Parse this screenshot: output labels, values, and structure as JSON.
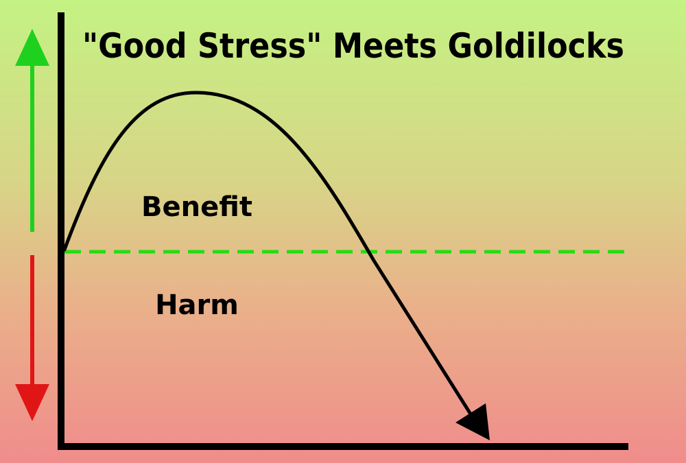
{
  "title": "\"Good Stress\" Meets Goldilocks",
  "labels": {
    "upper_region": "Benefit",
    "lower_region": "Harm"
  },
  "colors": {
    "background_top": "#c4f283",
    "background_bottom": "#f08c8b",
    "threshold_line": "#22dd11",
    "up_arrow": "#1ed11e",
    "down_arrow": "#e01616",
    "curve": "#000000",
    "axes": "#000000"
  },
  "icons": {
    "up_arrow": "green-up-arrow-icon",
    "down_arrow": "red-down-arrow-icon"
  }
}
